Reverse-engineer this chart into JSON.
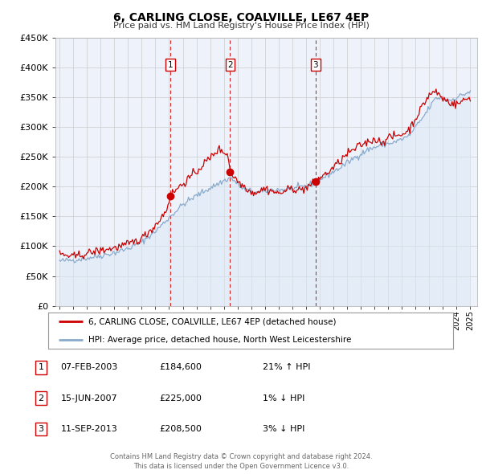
{
  "title": "6, CARLING CLOSE, COALVILLE, LE67 4EP",
  "subtitle": "Price paid vs. HM Land Registry's House Price Index (HPI)",
  "legend_line1": "6, CARLING CLOSE, COALVILLE, LE67 4EP (detached house)",
  "legend_line2": "HPI: Average price, detached house, North West Leicestershire",
  "table_rows": [
    {
      "num": "1",
      "date": "07-FEB-2003",
      "price": "£184,600",
      "hpi": "21% ↑ HPI"
    },
    {
      "num": "2",
      "date": "15-JUN-2007",
      "price": "£225,000",
      "hpi": "1% ↓ HPI"
    },
    {
      "num": "3",
      "date": "11-SEP-2013",
      "price": "£208,500",
      "hpi": "3% ↓ HPI"
    }
  ],
  "footer1": "Contains HM Land Registry data © Crown copyright and database right 2024.",
  "footer2": "This data is licensed under the Open Government Licence v3.0.",
  "sale_color": "#cc0000",
  "hpi_color": "#88aacc",
  "hpi_fill_color": "#dce8f5",
  "marker_color": "#cc0000",
  "vline_color": "#cc0000",
  "box_color": "#cc0000",
  "grid_color": "#cccccc",
  "ylim": [
    0,
    450000
  ],
  "yticks": [
    0,
    50000,
    100000,
    150000,
    200000,
    250000,
    300000,
    350000,
    400000,
    450000
  ],
  "sale_dates": [
    2003.09,
    2007.46,
    2013.7
  ],
  "sale_prices": [
    184600,
    225000,
    208500
  ],
  "background_color": "#eef3fb"
}
